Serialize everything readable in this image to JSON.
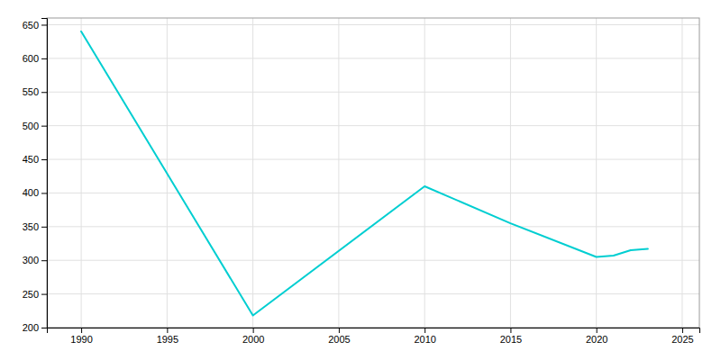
{
  "chart_data": {
    "type": "line",
    "x": [
      1990,
      2000,
      2010,
      2015,
      2020,
      2021,
      2022,
      2023
    ],
    "values": [
      640,
      218,
      410,
      355,
      305,
      307,
      315,
      317
    ],
    "color": "#00CED1",
    "xlim": [
      1988,
      2026
    ],
    "ylim": [
      200,
      660
    ],
    "xticks": [
      1990,
      1995,
      2000,
      2005,
      2010,
      2015,
      2020,
      2025
    ],
    "yticks": [
      200,
      250,
      300,
      350,
      400,
      450,
      500,
      550,
      600,
      650
    ],
    "grid": true
  }
}
